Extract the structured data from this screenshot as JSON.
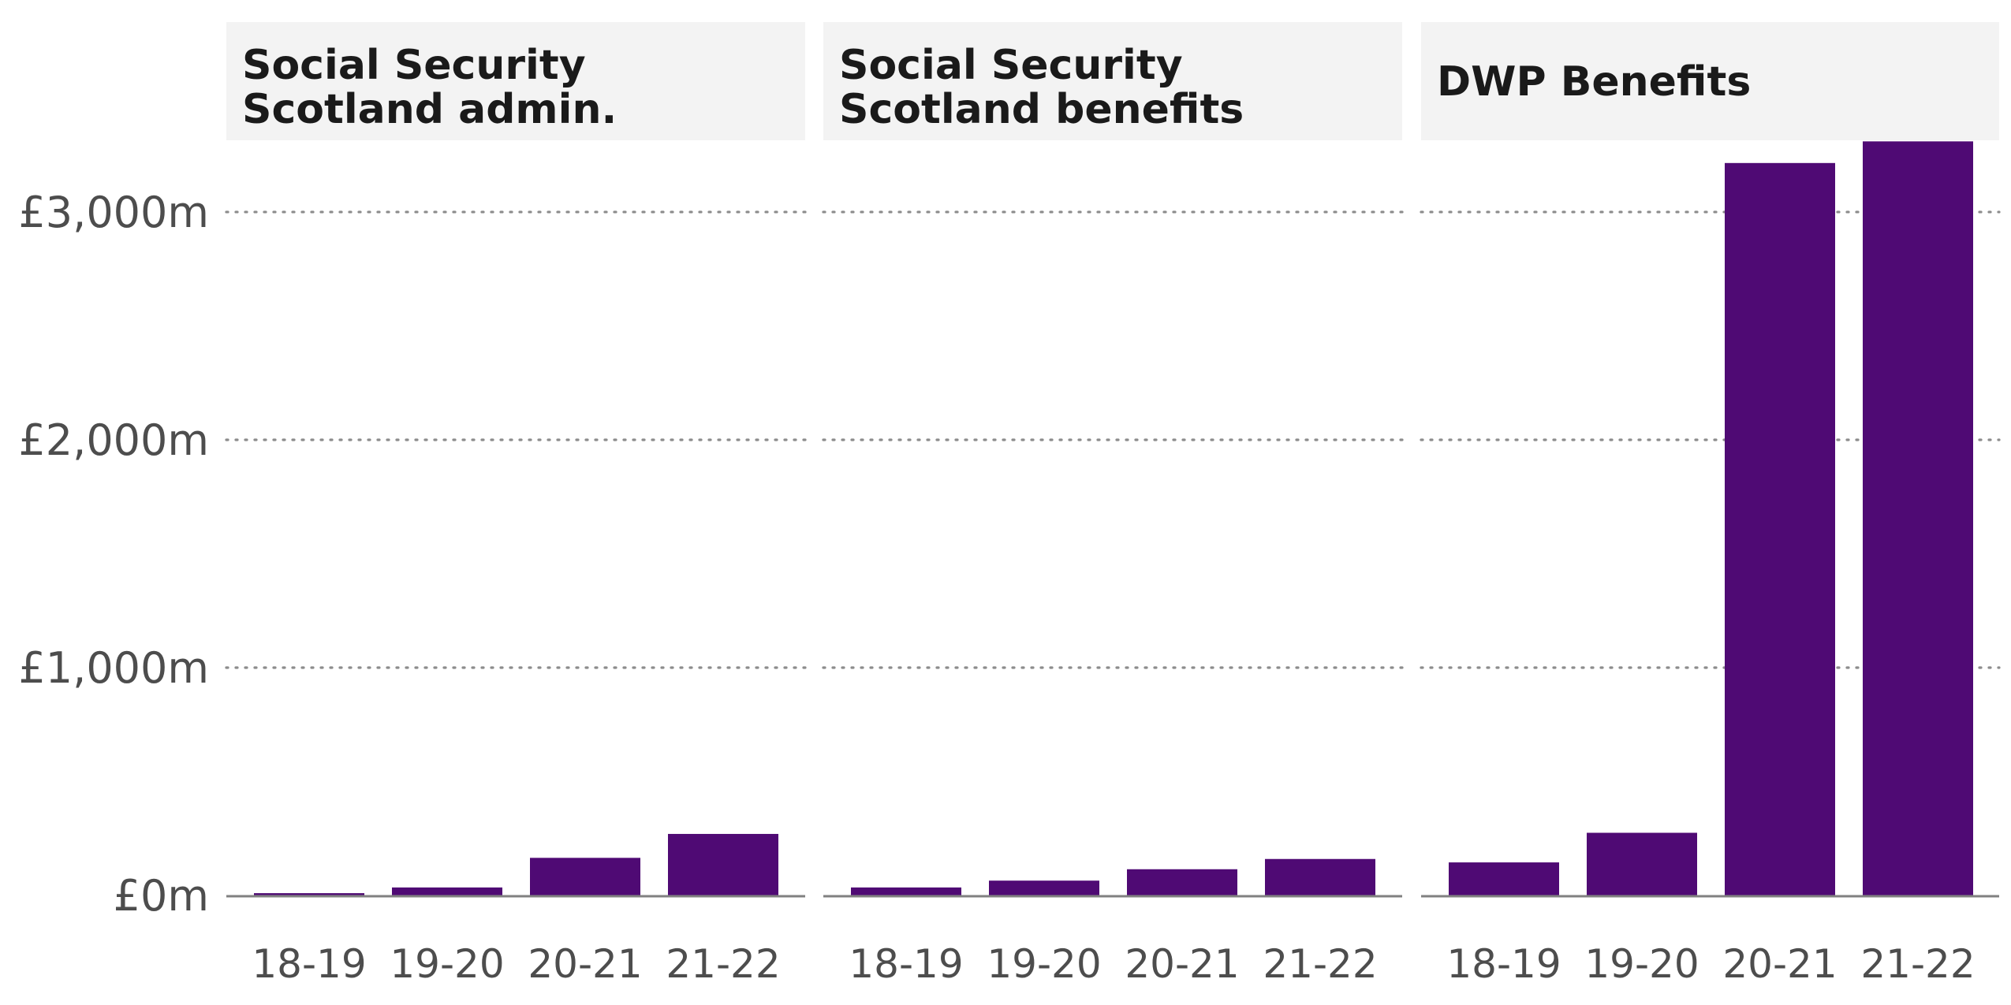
{
  "chart_data": {
    "type": "bar",
    "facets": [
      {
        "title_lines": [
          "Social Security",
          "Scotland admin."
        ],
        "categories": [
          "18-19",
          "19-20",
          "20-21",
          "21-22"
        ],
        "values": [
          10,
          35,
          165,
          270
        ]
      },
      {
        "title_lines": [
          "Social Security",
          "Scotland benefits"
        ],
        "categories": [
          "18-19",
          "19-20",
          "20-21",
          "21-22"
        ],
        "values": [
          35,
          65,
          115,
          160
        ]
      },
      {
        "title_lines": [
          "DWP Benefits"
        ],
        "categories": [
          "18-19",
          "19-20",
          "20-21",
          "21-22"
        ],
        "values": [
          145,
          275,
          3215,
          3310
        ]
      }
    ],
    "y_ticks": [
      0,
      1000,
      2000,
      3000
    ],
    "y_tick_labels": [
      "£0m",
      "£1,000m",
      "£2,000m",
      "£3,000m"
    ],
    "ylim": [
      0,
      3460
    ],
    "grid": "horizontal-dotted",
    "legend": "none",
    "colors": {
      "bar": "#4f0a74",
      "strip": "#f3f3f3",
      "grid": "#8c8c8c",
      "axis": "#808080",
      "title": "#1a1a1a",
      "tick": "#4d4d4d"
    }
  }
}
